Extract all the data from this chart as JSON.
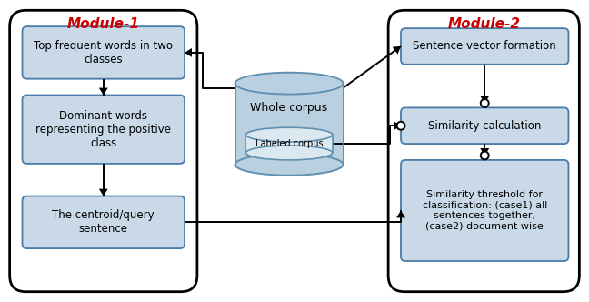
{
  "fig_width": 6.48,
  "fig_height": 3.32,
  "bg_color": "#ffffff",
  "box_fill": "#c9d9e8",
  "box_edge": "#4a7ba7",
  "module_border_color": "#000000",
  "module_title_color": "#cc0000",
  "arrow_color": "#000000",
  "module1_title": "Module-1",
  "module2_title": "Module-2",
  "box1_text": "Top frequent words in two\nclasses",
  "box2_text": "Dominant words\nrepresenting the positive\nclass",
  "box3_text": "The centroid/query\nsentence",
  "box4_text": "Sentence vector formation",
  "box5_text": "Similarity calculation",
  "box6_text": "Similarity threshold for\nclassification: (case1) all\nsentences together,\n(case2) document wise",
  "corpus_text": "Whole corpus",
  "labeled_text": "Labeled corpus",
  "cylinder_fill": "#b8d0e0",
  "cylinder_edge": "#6090b0",
  "labeled_fill": "#dce8f0",
  "labeled_edge": "#6090b0"
}
